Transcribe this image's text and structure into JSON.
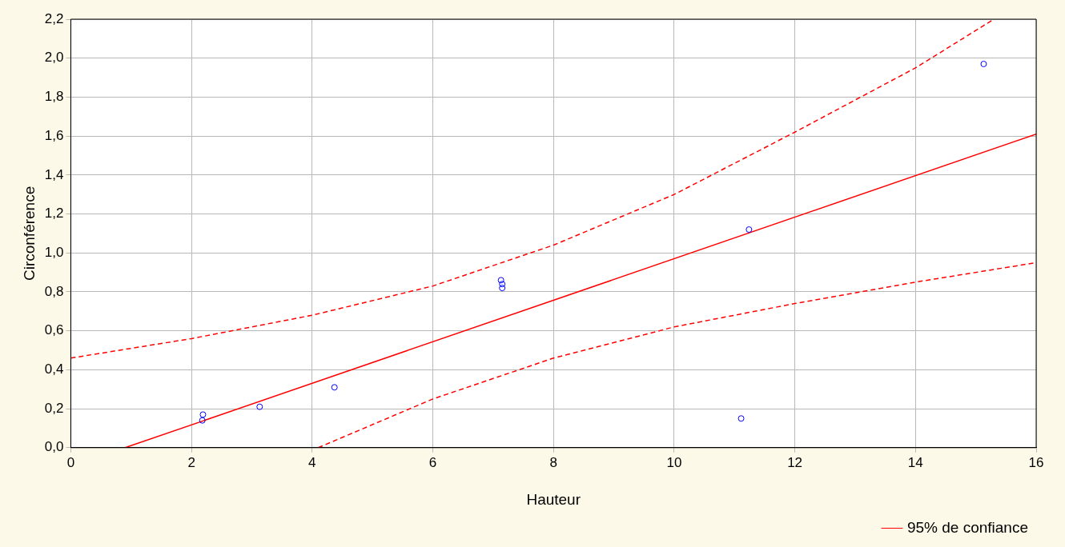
{
  "chart_data": {
    "type": "scatter",
    "xlabel": "Hauteur",
    "ylabel": "Circonférence",
    "xlim": [
      0,
      16
    ],
    "xticks": [
      0,
      2,
      4,
      6,
      8,
      10,
      12,
      14,
      16
    ],
    "ylim": [
      0,
      2.2
    ],
    "yticks": [
      {
        "value": 0,
        "label": "0,0"
      },
      {
        "value": 0.2,
        "label": "0,2"
      },
      {
        "value": 0.4,
        "label": "0,4"
      },
      {
        "value": 0.6,
        "label": "0,6"
      },
      {
        "value": 0.8,
        "label": "0,8"
      },
      {
        "value": 1.0,
        "label": "1,0"
      },
      {
        "value": 1.2,
        "label": "1,2"
      },
      {
        "value": 1.4,
        "label": "1,4"
      },
      {
        "value": 1.6,
        "label": "1,6"
      },
      {
        "value": 1.8,
        "label": "1,8"
      },
      {
        "value": 2.0,
        "label": "2,0"
      },
      {
        "value": 2.2,
        "label": "2,2"
      }
    ],
    "grid": true,
    "legend": "bottom right",
    "series": [
      {
        "type": "scatter",
        "color": "#0000ff",
        "marker": "circle",
        "x": [
          2.18,
          2.19,
          3.13,
          4.37,
          7.13,
          7.15,
          7.15,
          11.11,
          11.24,
          15.13
        ],
        "values": [
          0.14,
          0.17,
          0.21,
          0.31,
          0.86,
          0.84,
          0.82,
          0.15,
          1.12,
          1.97
        ]
      },
      {
        "type": "line",
        "name": "95% de confiance",
        "color": "#ff0000",
        "marker": "none",
        "line_style": "solid",
        "x": [
          0.9,
          16
        ],
        "values": [
          0,
          1.61
        ]
      },
      {
        "type": "line",
        "color": "#ff0000",
        "marker": "none",
        "line_style": "dashed",
        "x": [
          0,
          2,
          4,
          6,
          8,
          10,
          12,
          14,
          15.3
        ],
        "values": [
          0.46,
          0.56,
          0.68,
          0.83,
          1.04,
          1.3,
          1.62,
          1.95,
          2.2
        ]
      },
      {
        "type": "line",
        "color": "#ff0000",
        "marker": "none",
        "line_style": "dashed",
        "x": [
          4.1,
          6,
          8,
          10,
          12,
          14,
          16
        ],
        "values": [
          0,
          0.25,
          0.46,
          0.62,
          0.74,
          0.85,
          0.95
        ]
      }
    ]
  }
}
